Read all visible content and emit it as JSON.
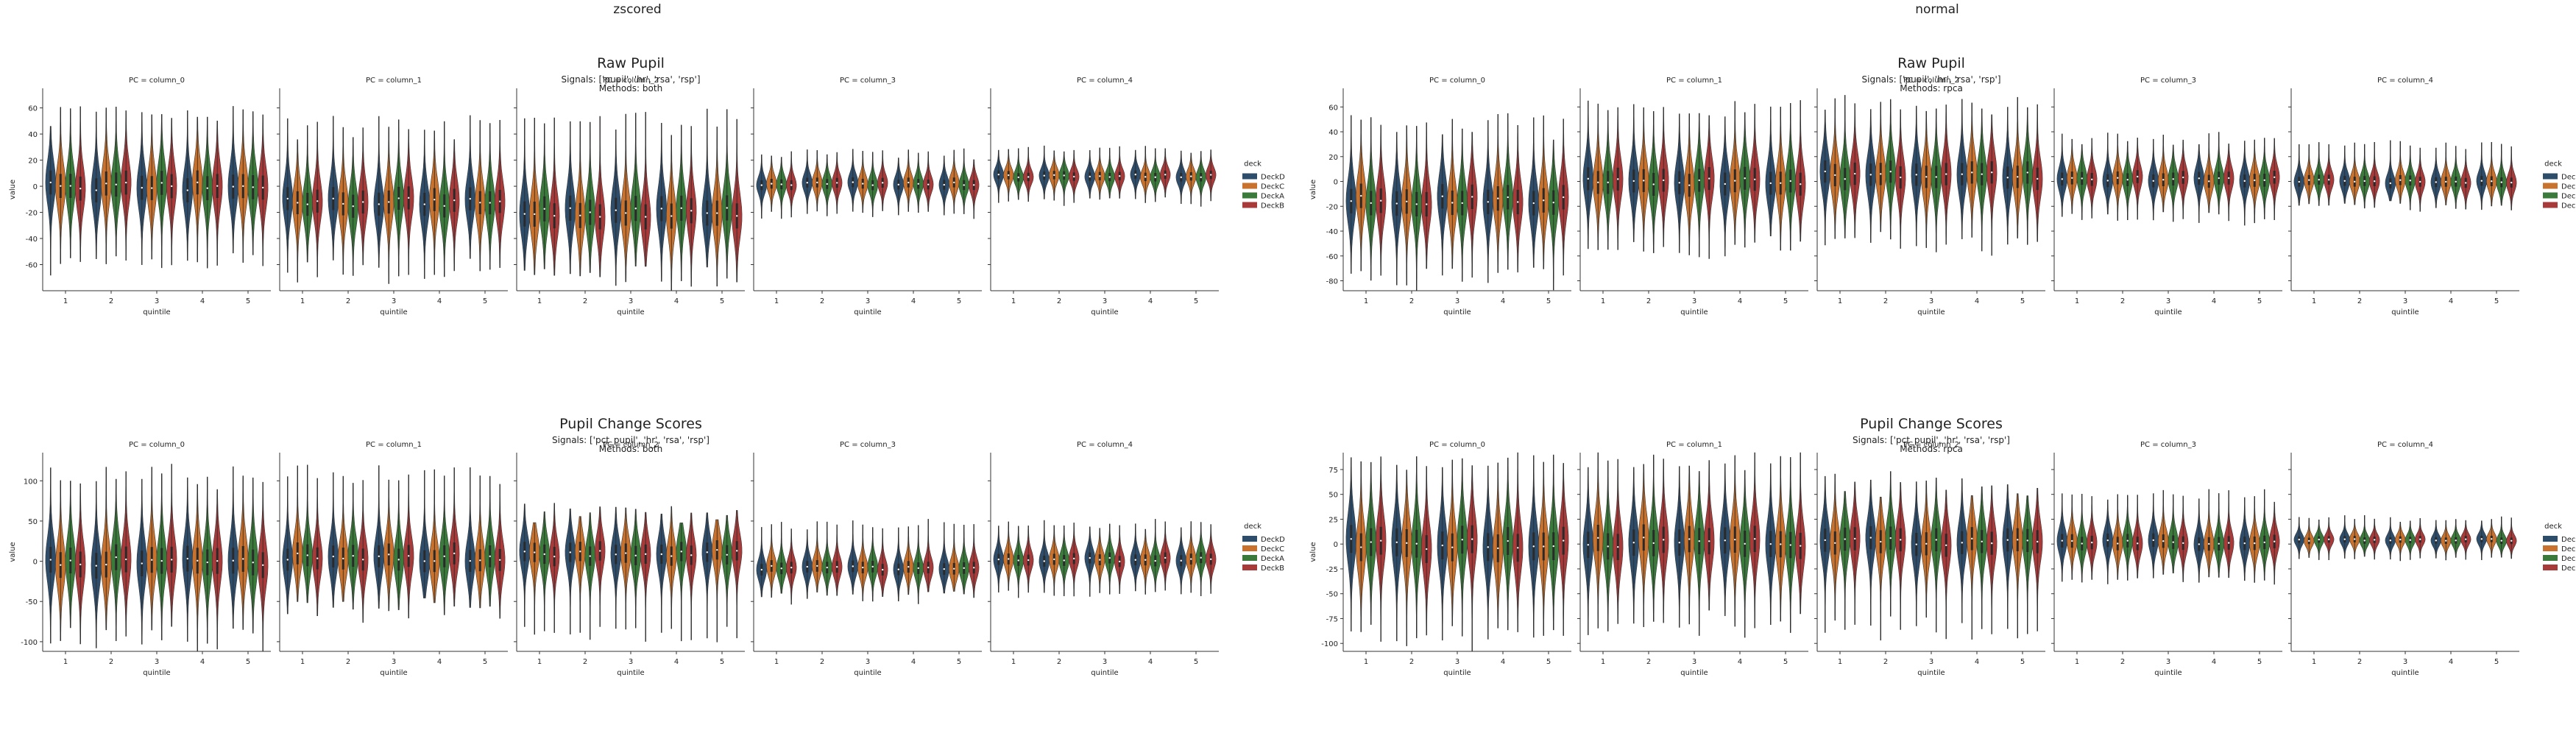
{
  "figure": {
    "column_titles": [
      "zscored",
      "normal"
    ]
  },
  "palette": {
    "DeckD": "#2e4d6b",
    "DeckC": "#c8722e",
    "DeckA": "#3a7a3a",
    "DeckB": "#a83a3a",
    "violin_body": "#2f3e4e",
    "text": "#222222"
  },
  "labels": {
    "xlabel": "quintile",
    "ylabel": "value",
    "legend_title": "deck",
    "legend_entries": [
      "DeckD",
      "DeckC",
      "DeckA",
      "DeckB"
    ],
    "facet_titles": [
      "PC = column_0",
      "PC = column_1",
      "PC = column_2",
      "PC = column_3",
      "PC = column_4"
    ],
    "quintiles": [
      "1",
      "2",
      "3",
      "4",
      "5"
    ]
  },
  "panels": [
    {
      "title": "Raw Pupil",
      "signals": "Signals: ['pupil', 'hr', 'rsa', 'rsp']",
      "methods": "Methods: both",
      "column": "zscored",
      "ylim": [
        -80,
        75
      ],
      "yticks": [
        -60,
        -40,
        -20,
        0,
        20,
        40,
        60
      ]
    },
    {
      "title": "Raw Pupil",
      "signals": "Signals: ['pupil', 'hr', 'rsa', 'rsp']",
      "methods": "Methods: rpca",
      "column": "normal",
      "ylim": [
        -88,
        75
      ],
      "yticks": [
        -80,
        -60,
        -40,
        -20,
        0,
        20,
        40,
        60
      ]
    },
    {
      "title": "Pupil Change Scores",
      "signals": "Signals: ['pct_pupil', 'hr', 'rsa', 'rsp']",
      "methods": "Methods: both",
      "column": "zscored",
      "ylim": [
        -112,
        135
      ],
      "yticks": [
        -100,
        -50,
        0,
        50,
        100
      ]
    },
    {
      "title": "Pupil Change Scores",
      "signals": "Signals: ['pct_pupil', 'hr', 'rsa', 'rsp']",
      "methods": "Methods: rpca",
      "column": "normal",
      "ylim": [
        -108,
        92
      ],
      "yticks": [
        -100,
        -75,
        -50,
        -25,
        0,
        25,
        50,
        75
      ]
    }
  ],
  "chart_data": [
    {
      "type": "violin",
      "title": "Raw Pupil",
      "subtitle": "Signals: ['pupil', 'hr', 'rsa', 'rsp'] Methods: both",
      "xlabel": "quintile",
      "ylabel": "value",
      "facets": [
        "PC = column_0",
        "PC = column_1",
        "PC = column_2",
        "PC = column_3",
        "PC = column_4"
      ],
      "categories": [
        "1",
        "2",
        "3",
        "4",
        "5"
      ],
      "series": [
        "DeckD",
        "DeckC",
        "DeckA",
        "DeckB"
      ],
      "facet_distributions": [
        {
          "median": 0,
          "min": -60,
          "max": 55
        },
        {
          "median": -12,
          "min": -65,
          "max": 45
        },
        {
          "median": -20,
          "min": -70,
          "max": 50
        },
        {
          "median": 2,
          "min": -22,
          "max": 25
        },
        {
          "median": 8,
          "min": -12,
          "max": 28
        }
      ]
    },
    {
      "type": "violin",
      "title": "Raw Pupil",
      "subtitle": "Signals: ['pupil', 'hr', 'rsa', 'rsp'] Methods: rpca",
      "xlabel": "quintile",
      "ylabel": "value",
      "facets": [
        "PC = column_0",
        "PC = column_1",
        "PC = column_2",
        "PC = column_3",
        "PC = column_4"
      ],
      "categories": [
        "1",
        "2",
        "3",
        "4",
        "5"
      ],
      "series": [
        "DeckD",
        "DeckC",
        "DeckA",
        "DeckB"
      ],
      "facet_distributions": [
        {
          "median": -15,
          "min": -78,
          "max": 45
        },
        {
          "median": 0,
          "min": -55,
          "max": 60
        },
        {
          "median": 5,
          "min": -50,
          "max": 62
        },
        {
          "median": 2,
          "min": -30,
          "max": 35
        },
        {
          "median": 0,
          "min": -20,
          "max": 30
        }
      ]
    },
    {
      "type": "violin",
      "title": "Pupil Change Scores",
      "subtitle": "Signals: ['pct_pupil', 'hr', 'rsa', 'rsp'] Methods: both",
      "xlabel": "quintile",
      "ylabel": "value",
      "facets": [
        "PC = column_0",
        "PC = column_1",
        "PC = column_2",
        "PC = column_3",
        "PC = column_4"
      ],
      "categories": [
        "1",
        "2",
        "3",
        "4",
        "5"
      ],
      "series": [
        "DeckD",
        "DeckC",
        "DeckA",
        "DeckB"
      ],
      "facet_distributions": [
        {
          "median": 0,
          "min": -95,
          "max": 105
        },
        {
          "median": 5,
          "min": -60,
          "max": 110
        },
        {
          "median": 10,
          "min": -90,
          "max": 60
        },
        {
          "median": -8,
          "min": -45,
          "max": 45
        },
        {
          "median": 2,
          "min": -40,
          "max": 45
        }
      ]
    },
    {
      "type": "violin",
      "title": "Pupil Change Scores",
      "subtitle": "Signals: ['pct_pupil', 'hr', 'rsa', 'rsp'] Methods: rpca",
      "xlabel": "quintile",
      "ylabel": "value",
      "facets": [
        "PC = column_0",
        "PC = column_1",
        "PC = column_2",
        "PC = column_3",
        "PC = column_4"
      ],
      "categories": [
        "1",
        "2",
        "3",
        "4",
        "5"
      ],
      "series": [
        "DeckD",
        "DeckC",
        "DeckA",
        "DeckB"
      ],
      "facet_distributions": [
        {
          "median": 0,
          "min": -95,
          "max": 80
        },
        {
          "median": 2,
          "min": -80,
          "max": 85
        },
        {
          "median": 3,
          "min": -85,
          "max": 60
        },
        {
          "median": 2,
          "min": -35,
          "max": 50
        },
        {
          "median": 4,
          "min": -15,
          "max": 25
        }
      ]
    }
  ]
}
